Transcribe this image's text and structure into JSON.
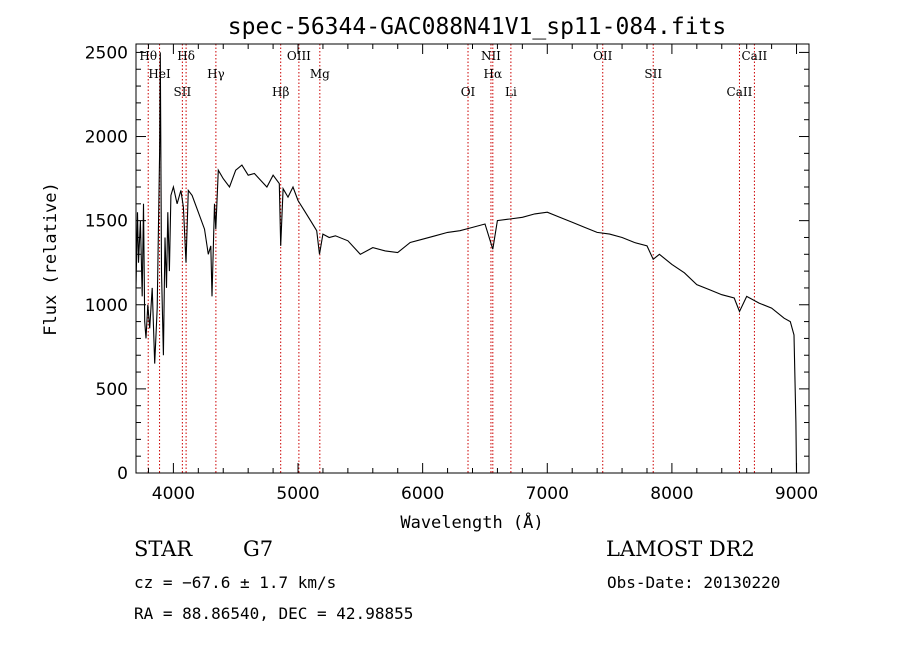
{
  "chart_data": {
    "type": "line",
    "title": "spec-56344-GAC088N41V1_sp11-084.fits",
    "xlabel": "Wavelength (Å)",
    "ylabel": "Flux (relative)",
    "xlim": [
      3700,
      9100
    ],
    "ylim": [
      0,
      2550
    ],
    "x_ticks": [
      4000,
      5000,
      6000,
      7000,
      8000,
      9000
    ],
    "y_ticks": [
      0,
      500,
      1000,
      1500,
      2000,
      2500
    ],
    "series": [
      {
        "x": [
          3700,
          3712,
          3720,
          3735,
          3750,
          3760,
          3770,
          3780,
          3795,
          3810,
          3830,
          3850,
          3870,
          3889,
          3895,
          3905,
          3920,
          3933,
          3945,
          3955,
          3968,
          3980,
          4000,
          4030,
          4060,
          4080,
          4101,
          4120,
          4150,
          4200,
          4250,
          4280,
          4300,
          4310,
          4330,
          4340,
          4360,
          4400,
          4450,
          4500,
          4550,
          4600,
          4650,
          4700,
          4750,
          4800,
          4850,
          4861,
          4880,
          4920,
          4960,
          5000,
          5050,
          5100,
          5150,
          5172,
          5200,
          5250,
          5300,
          5400,
          5500,
          5600,
          5700,
          5800,
          5900,
          6000,
          6100,
          6200,
          6300,
          6400,
          6500,
          6563,
          6600,
          6700,
          6800,
          6900,
          7000,
          7100,
          7200,
          7300,
          7400,
          7500,
          7600,
          7700,
          7800,
          7850,
          7900,
          8000,
          8100,
          8200,
          8300,
          8400,
          8500,
          8542,
          8600,
          8700,
          8800,
          8900,
          8950,
          8980,
          8995,
          9000
        ],
        "y": [
          1100,
          1550,
          1250,
          1500,
          1050,
          1600,
          900,
          800,
          1000,
          860,
          1100,
          650,
          980,
          1900,
          2500,
          1200,
          700,
          1400,
          1100,
          1550,
          1200,
          1650,
          1700,
          1600,
          1680,
          1580,
          1250,
          1680,
          1650,
          1550,
          1450,
          1300,
          1350,
          1050,
          1600,
          1450,
          1800,
          1750,
          1700,
          1800,
          1830,
          1770,
          1780,
          1740,
          1700,
          1770,
          1720,
          1350,
          1690,
          1640,
          1700,
          1620,
          1560,
          1500,
          1440,
          1300,
          1420,
          1400,
          1410,
          1380,
          1300,
          1340,
          1320,
          1310,
          1370,
          1390,
          1410,
          1430,
          1440,
          1460,
          1480,
          1330,
          1500,
          1510,
          1520,
          1540,
          1550,
          1520,
          1490,
          1460,
          1430,
          1420,
          1400,
          1370,
          1350,
          1270,
          1300,
          1240,
          1190,
          1120,
          1090,
          1060,
          1040,
          960,
          1050,
          1010,
          980,
          920,
          900,
          820,
          300,
          0
        ]
      }
    ],
    "lines": [
      {
        "x": 3798,
        "label": "Hθ"
      },
      {
        "x": 3889,
        "label": "HeI"
      },
      {
        "x": 4072,
        "label": "SII"
      },
      {
        "x": 4102,
        "label": "Hδ"
      },
      {
        "x": 4341,
        "label": "Hγ"
      },
      {
        "x": 4861,
        "label": "Hβ"
      },
      {
        "x": 5007,
        "label": "OIII"
      },
      {
        "x": 5175,
        "label": "Mg"
      },
      {
        "x": 6364,
        "label": "OI"
      },
      {
        "x": 6548,
        "label": "NII"
      },
      {
        "x": 6563,
        "label": "Hα"
      },
      {
        "x": 6708,
        "label": "Li"
      },
      {
        "x": 7445,
        "label": "OII"
      },
      {
        "x": 7850,
        "label": "SII"
      },
      {
        "x": 8542,
        "label": "CaII"
      },
      {
        "x": 8662,
        "label": "CaII"
      }
    ],
    "line_color": "#cc0000",
    "series_color": "#000000"
  },
  "footer": {
    "class_label": "STAR",
    "subclass": "G7",
    "cz": "cz = −67.6 ± 1.7 km/s",
    "coords": "RA =  88.86540, DEC =  42.98855",
    "survey": "LAMOST DR2",
    "obs_date": "Obs-Date: 20130220"
  }
}
